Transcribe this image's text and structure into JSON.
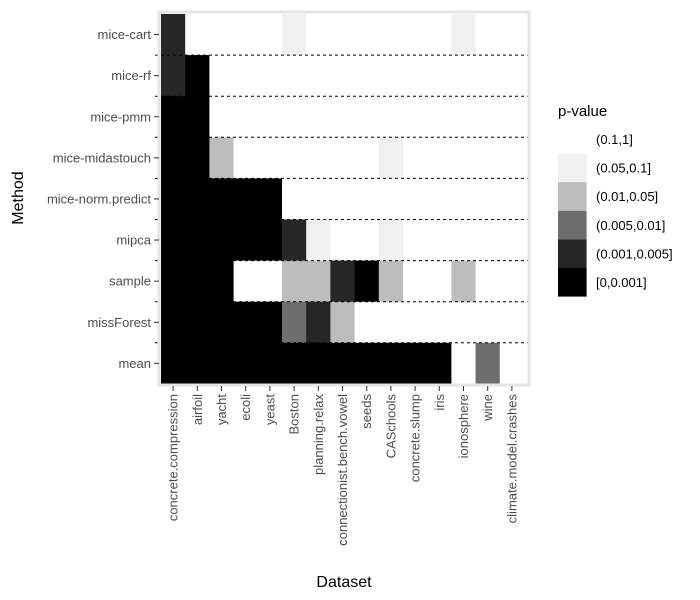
{
  "chart_data": {
    "type": "heatmap",
    "xlabel": "Dataset",
    "ylabel": "Method",
    "x_categories": [
      "concrete.compression",
      "airfoil",
      "yacht",
      "ecoli",
      "yeast",
      "Boston",
      "planning.relax",
      "connectionist.bench.vowel",
      "seeds",
      "CASchools",
      "concrete.slump",
      "iris",
      "ionosphere",
      "wine",
      "climate.model.crashes"
    ],
    "y_categories": [
      "mice-cart",
      "mice-rf",
      "mice-pmm",
      "mice-midastouch",
      "mice-norm.predict",
      "mipca",
      "sample",
      "missForest",
      "mean"
    ],
    "legend": {
      "title": "p-value",
      "placement": "right",
      "levels": [
        {
          "label": "(0.1,1]",
          "color": "#ffffff"
        },
        {
          "label": "(0.05,0.1]",
          "color": "#f0f0f0"
        },
        {
          "label": "(0.01,0.05]",
          "color": "#bdbdbd"
        },
        {
          "label": "(0.005,0.01]",
          "color": "#6e6e6e"
        },
        {
          "label": "(0.001,0.005]",
          "color": "#262626"
        },
        {
          "label": "[0,0.001]",
          "color": "#000000"
        }
      ]
    },
    "values": [
      [
        4,
        0,
        0,
        0,
        0,
        1,
        0,
        0,
        0,
        0,
        0,
        0,
        1,
        0,
        0
      ],
      [
        4,
        5,
        0,
        0,
        0,
        0,
        0,
        0,
        0,
        0,
        0,
        0,
        0,
        0,
        0
      ],
      [
        5,
        5,
        0,
        0,
        0,
        0,
        0,
        0,
        0,
        0,
        0,
        0,
        0,
        0,
        0
      ],
      [
        5,
        5,
        2,
        0,
        0,
        0,
        0,
        0,
        0,
        1,
        0,
        0,
        0,
        0,
        0
      ],
      [
        5,
        5,
        5,
        5,
        5,
        0,
        0,
        0,
        0,
        0,
        0,
        0,
        0,
        0,
        0
      ],
      [
        5,
        5,
        5,
        5,
        5,
        4,
        1,
        0,
        0,
        1,
        0,
        0,
        0,
        0,
        0
      ],
      [
        5,
        5,
        5,
        0,
        0,
        2,
        2,
        4,
        5,
        2,
        0,
        0,
        2,
        0,
        0
      ],
      [
        5,
        5,
        5,
        5,
        5,
        3,
        4,
        2,
        0,
        0,
        0,
        0,
        0,
        0,
        0
      ],
      [
        5,
        5,
        5,
        5,
        5,
        5,
        5,
        5,
        5,
        5,
        5,
        5,
        0,
        3,
        0
      ]
    ]
  }
}
